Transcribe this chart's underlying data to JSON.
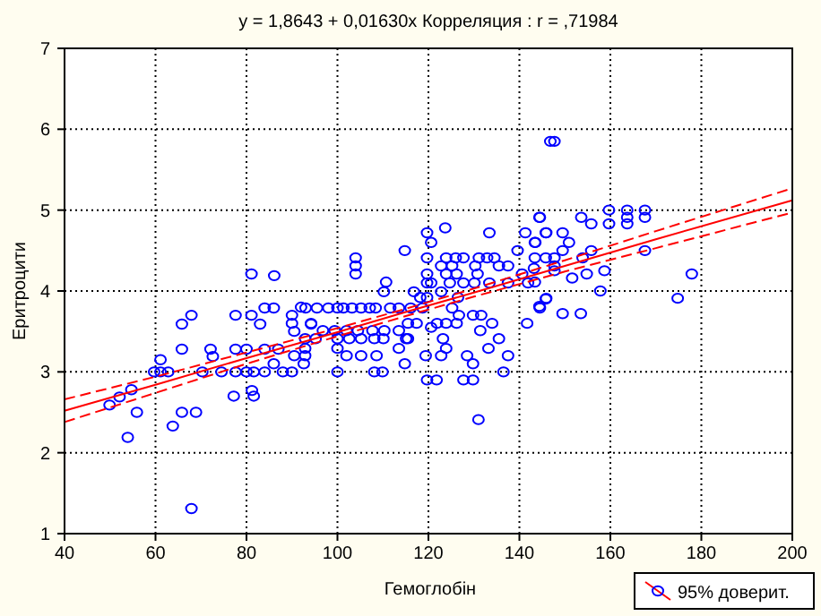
{
  "chart_data": {
    "type": "scatter",
    "title": "y = 1,8643 + 0,01630x  Корреляция : r = ,71984",
    "xlabel": "Гемоглобін",
    "ylabel": "Еритроцити",
    "xlim": [
      40,
      200
    ],
    "ylim": [
      1,
      7
    ],
    "xticks": [
      40,
      60,
      80,
      100,
      120,
      140,
      160,
      180,
      200
    ],
    "yticks": [
      1,
      2,
      3,
      4,
      5,
      6,
      7
    ],
    "grid": true,
    "legend": "bottom right",
    "marker": "circle",
    "series": [
      {
        "color": "#0000ff",
        "x": [
          81.1,
          86.1,
          67.9,
          65.8,
          65.8,
          72.1,
          61.1,
          59.7,
          61.1,
          62.8,
          54.7,
          52.1,
          49.9,
          55.9,
          53.9,
          63.8,
          65.8,
          68.9,
          67.9,
          77.6,
          81.1,
          83,
          84,
          86,
          77.6,
          80,
          70.3,
          74.5,
          77.6,
          80,
          81.6,
          84,
          77.2,
          81.2,
          81.6,
          72.6,
          84,
          87,
          90,
          92,
          90,
          90.5,
          94.2,
          86,
          88,
          90,
          90.5,
          92.6,
          146.8,
          144.5,
          141.3,
          145.8,
          123.7,
          119.7,
          133.4,
          114.8,
          120.6,
          139.6,
          143.5,
          104,
          104,
          104,
          119.7,
          123.9,
          126,
          127.7,
          131.1,
          132.9,
          134.5,
          122.8,
          125.2,
          130.3,
          135.5,
          137.5,
          119.7,
          123.9,
          126.2,
          130.8,
          140.6,
          143.2,
          110.7,
          110.2,
          119.7,
          120.6,
          124.7,
          127.7,
          130.1,
          133.4,
          137.5,
          116.8,
          118.2,
          119.7,
          122.8,
          126.5,
          145.8,
          144.5,
          141.9,
          93,
          95.5,
          98,
          100,
          101.3,
          103.2,
          105.2,
          107.1,
          108.4,
          111.6,
          113.5,
          116.1,
          118.7,
          125.2,
          126.7,
          129.8,
          131.6,
          94.2,
          96.8,
          99.4,
          102,
          104.5,
          107.7,
          110.3,
          113.5,
          115.5,
          117.4,
          121.9,
          123.9,
          126.2,
          131.4,
          134,
          92.9,
          95.2,
          100,
          102.6,
          105.2,
          108.1,
          110.1,
          115.1,
          123.2,
          135.5,
          141.7,
          92.9,
          100,
          113.5,
          115.5,
          120.6,
          123.9,
          133.2,
          92.9,
          102,
          105.2,
          108.6,
          114.8,
          119.4,
          122.8,
          128.5,
          129.8,
          137.5,
          100,
          108.1,
          109.9,
          136.5,
          119.7,
          121.8,
          127.7,
          129.8,
          131,
          147.7,
          159.7,
          163.7,
          167.6,
          163.7,
          167.6,
          159.7,
          163.7,
          155.8,
          144.4,
          153.6,
          145.9,
          149.5,
          150.9,
          149.5,
          155.8,
          167.6,
          143.4,
          147.7,
          145.8,
          143.4,
          153.9,
          147.7,
          147.7,
          158.7,
          154.8,
          151.6,
          177.9,
          143.4,
          157.8,
          174.8,
          145.9,
          144.4,
          149.5,
          153.5
        ],
        "values": [
          4.21,
          4.19,
          3.7,
          3.59,
          3.28,
          3.28,
          3.15,
          3,
          3,
          3,
          2.78,
          2.69,
          2.59,
          2.5,
          2.19,
          2.33,
          2.5,
          2.5,
          1.31,
          3.7,
          3.7,
          3.59,
          3.79,
          3.79,
          3.28,
          3.28,
          3,
          3,
          3,
          3,
          3,
          3,
          2.7,
          2.77,
          2.7,
          3.19,
          3.28,
          3.28,
          3.7,
          3.8,
          3.6,
          3.5,
          3.59,
          3.1,
          3,
          3,
          3.2,
          3.1,
          5.85,
          4.91,
          4.72,
          4.72,
          4.78,
          4.72,
          4.72,
          4.5,
          4.6,
          4.5,
          4.6,
          4.41,
          4.31,
          4.21,
          4.41,
          4.41,
          4.41,
          4.41,
          4.41,
          4.41,
          4.41,
          4.31,
          4.31,
          4.31,
          4.31,
          4.31,
          4.21,
          4.21,
          4.21,
          4.21,
          4.21,
          4.28,
          4.11,
          3.99,
          4.1,
          4.1,
          4.1,
          4.1,
          4.1,
          4.1,
          4.1,
          3.99,
          3.92,
          3.92,
          3.99,
          3.92,
          3.9,
          3.79,
          4.1,
          3.79,
          3.79,
          3.79,
          3.79,
          3.79,
          3.79,
          3.79,
          3.79,
          3.79,
          3.79,
          3.79,
          3.79,
          3.79,
          3.79,
          3.7,
          3.7,
          3.7,
          3.6,
          3.51,
          3.51,
          3.51,
          3.51,
          3.51,
          3.51,
          3.51,
          3.6,
          3.6,
          3.6,
          3.6,
          3.6,
          3.51,
          3.6,
          3.41,
          3.41,
          3.41,
          3.41,
          3.41,
          3.41,
          3.41,
          3.41,
          3.41,
          3.41,
          3.6,
          3.29,
          3.29,
          3.29,
          3.41,
          3.55,
          3.29,
          3.29,
          3.2,
          3.2,
          3.2,
          3.2,
          3.1,
          3.2,
          3.2,
          3.2,
          3.1,
          3.2,
          3,
          3,
          3,
          3,
          2.9,
          2.9,
          2.9,
          2.9,
          2.41,
          5.85,
          5,
          5,
          5,
          4.91,
          4.91,
          4.83,
          4.83,
          4.83,
          4.91,
          4.91,
          4.72,
          4.72,
          4.6,
          4.5,
          4.5,
          4.5,
          4.6,
          4.41,
          4.41,
          4.41,
          4.41,
          4.31,
          4.25,
          4.25,
          4.21,
          4.16,
          4.21,
          4.11,
          4,
          3.91,
          3.91,
          3.81,
          3.72,
          3.72
        ]
      },
      {
        "type": "line",
        "name": "95% доверит.",
        "color": "#ff0000",
        "x": [
          40,
          60,
          80,
          100,
          115,
          130,
          150,
          170,
          200
        ],
        "values": [
          2.52,
          2.84,
          3.17,
          3.49,
          3.74,
          3.98,
          4.31,
          4.64,
          5.12
        ],
        "line_style": "solid",
        "marker": "none"
      },
      {
        "type": "line",
        "color": "#ff0000",
        "x": [
          40,
          60,
          80,
          100,
          115,
          130,
          150,
          170,
          200
        ],
        "values": [
          2.38,
          2.74,
          3.1,
          3.44,
          3.69,
          3.93,
          4.24,
          4.53,
          4.97
        ],
        "line_style": "dashed",
        "marker": "none"
      },
      {
        "type": "line",
        "color": "#ff0000",
        "x": [
          40,
          60,
          80,
          100,
          115,
          130,
          150,
          170,
          200
        ],
        "values": [
          2.66,
          2.94,
          3.24,
          3.54,
          3.78,
          4.03,
          4.38,
          4.74,
          5.27
        ],
        "line_style": "dashed",
        "marker": "none"
      }
    ]
  }
}
